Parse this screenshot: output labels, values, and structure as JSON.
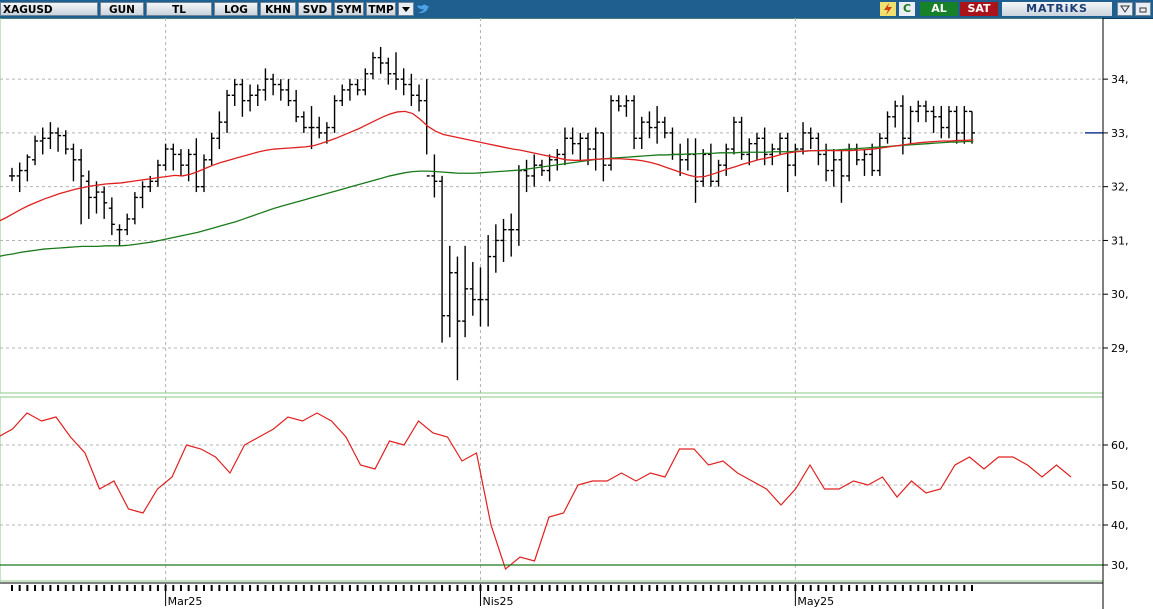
{
  "toolbar": {
    "symbol": "XAGUSD",
    "buttons": [
      "GUN",
      "TL",
      "LOG",
      "KHN",
      "SVD",
      "SYM",
      "TMP"
    ],
    "buy_label": "AL",
    "sell_label": "SAT",
    "brand": "MATRiKS",
    "icons": [
      "dropdown-arrow-icon",
      "twitter-bird-icon",
      "lightning-icon",
      "refresh-c-icon",
      "collapse-icon",
      "minimize-icon"
    ]
  },
  "colors": {
    "toolbar_bg": "#1f5f8f",
    "price_bars": "#000000",
    "ma_short": "#e02020",
    "ma_long": "#1a7a1a",
    "rsi_line": "#e02020",
    "rsi_threshold": "#1a7a1a",
    "panel_border": "#88c888",
    "grid": "#b4b4b4"
  },
  "chart_data": [
    {
      "type": "ohlc",
      "yticks": [
        29,
        30,
        31,
        32,
        33,
        34
      ],
      "ylim": [
        28.2,
        35.1
      ],
      "x_labels": [
        {
          "label": "Mar25",
          "index": 20
        },
        {
          "label": "Nis25",
          "index": 61
        },
        {
          "label": "May25",
          "index": 102
        }
      ],
      "bars": [
        [
          32.2,
          32.35,
          32.1,
          32.2
        ],
        [
          32.2,
          32.45,
          31.9,
          32.3
        ],
        [
          32.3,
          32.6,
          32.1,
          32.55
        ],
        [
          32.5,
          32.95,
          32.4,
          32.85
        ],
        [
          32.85,
          33.1,
          32.6,
          32.9
        ],
        [
          32.9,
          33.2,
          32.7,
          33.0
        ],
        [
          33.0,
          33.1,
          32.65,
          32.95
        ],
        [
          32.95,
          33.05,
          32.6,
          32.7
        ],
        [
          32.7,
          32.8,
          32.1,
          32.5
        ],
        [
          32.5,
          32.7,
          31.3,
          32.2
        ],
        [
          32.1,
          32.3,
          31.4,
          31.8
        ],
        [
          31.8,
          32.1,
          31.5,
          31.9
        ],
        [
          31.9,
          32.0,
          31.4,
          31.7
        ],
        [
          31.6,
          31.8,
          31.1,
          31.3
        ],
        [
          31.2,
          31.3,
          30.9,
          31.2
        ],
        [
          31.2,
          31.5,
          31.1,
          31.4
        ],
        [
          31.4,
          31.9,
          31.3,
          31.8
        ],
        [
          31.8,
          32.1,
          31.6,
          32.0
        ],
        [
          32.0,
          32.2,
          31.9,
          32.1
        ],
        [
          32.1,
          32.5,
          32.0,
          32.4
        ],
        [
          32.4,
          32.8,
          32.3,
          32.7
        ],
        [
          32.7,
          32.8,
          32.3,
          32.6
        ],
        [
          32.6,
          32.7,
          32.2,
          32.4
        ],
        [
          32.4,
          32.7,
          32.1,
          32.6
        ],
        [
          32.6,
          32.9,
          31.9,
          32.0
        ],
        [
          32.0,
          32.6,
          31.9,
          32.5
        ],
        [
          32.5,
          33.0,
          32.4,
          32.9
        ],
        [
          32.9,
          33.4,
          32.7,
          33.2
        ],
        [
          33.2,
          33.8,
          33.0,
          33.7
        ],
        [
          33.7,
          34.0,
          33.5,
          33.9
        ],
        [
          33.9,
          34.0,
          33.3,
          33.6
        ],
        [
          33.6,
          33.9,
          33.4,
          33.7
        ],
        [
          33.7,
          33.9,
          33.5,
          33.8
        ],
        [
          33.8,
          34.2,
          33.6,
          34.0
        ],
        [
          34.0,
          34.1,
          33.7,
          33.9
        ],
        [
          33.9,
          34.0,
          33.6,
          33.8
        ],
        [
          33.8,
          34.0,
          33.5,
          33.6
        ],
        [
          33.6,
          33.8,
          33.2,
          33.3
        ],
        [
          33.3,
          33.4,
          33.0,
          33.1
        ],
        [
          33.1,
          33.5,
          32.7,
          33.1
        ],
        [
          33.1,
          33.3,
          32.9,
          33.0
        ],
        [
          33.0,
          33.2,
          32.8,
          33.1
        ],
        [
          33.1,
          33.7,
          33.0,
          33.6
        ],
        [
          33.6,
          33.9,
          33.5,
          33.8
        ],
        [
          33.8,
          34.0,
          33.6,
          33.9
        ],
        [
          33.9,
          34.0,
          33.7,
          33.8
        ],
        [
          33.8,
          34.2,
          33.7,
          34.1
        ],
        [
          34.1,
          34.5,
          34.0,
          34.4
        ],
        [
          34.4,
          34.6,
          34.1,
          34.3
        ],
        [
          34.3,
          34.4,
          33.9,
          34.1
        ],
        [
          34.1,
          34.5,
          33.8,
          34.0
        ],
        [
          34.0,
          34.2,
          33.7,
          33.9
        ],
        [
          33.9,
          34.1,
          33.5,
          33.7
        ],
        [
          33.7,
          33.9,
          33.4,
          33.6
        ],
        [
          33.6,
          34.0,
          32.6,
          32.2
        ],
        [
          32.2,
          32.6,
          31.8,
          32.1
        ],
        [
          32.1,
          32.2,
          29.1,
          29.6
        ],
        [
          29.6,
          30.9,
          29.2,
          30.4
        ],
        [
          30.4,
          30.7,
          28.4,
          29.5
        ],
        [
          29.5,
          30.9,
          29.2,
          30.1
        ],
        [
          30.1,
          30.6,
          29.6,
          29.9
        ],
        [
          29.9,
          30.5,
          29.4,
          29.9
        ],
        [
          29.9,
          31.1,
          29.4,
          30.7
        ],
        [
          30.7,
          31.3,
          30.4,
          31.0
        ],
        [
          31.0,
          31.4,
          30.6,
          31.2
        ],
        [
          31.2,
          31.5,
          30.7,
          31.2
        ],
        [
          31.2,
          32.4,
          30.9,
          32.3
        ],
        [
          32.3,
          32.5,
          31.9,
          32.2
        ],
        [
          32.2,
          32.6,
          32.0,
          32.4
        ],
        [
          32.4,
          32.5,
          32.2,
          32.3
        ],
        [
          32.3,
          32.6,
          32.1,
          32.5
        ],
        [
          32.5,
          32.7,
          32.3,
          32.6
        ],
        [
          32.6,
          33.1,
          32.4,
          32.9
        ],
        [
          32.9,
          33.1,
          32.6,
          32.8
        ],
        [
          32.8,
          33.0,
          32.5,
          32.9
        ],
        [
          32.9,
          33.0,
          32.4,
          32.7
        ],
        [
          32.7,
          33.1,
          32.3,
          33.0
        ],
        [
          33.0,
          33.0,
          32.1,
          32.4
        ],
        [
          32.4,
          33.7,
          32.3,
          33.6
        ],
        [
          33.6,
          33.7,
          33.4,
          33.5
        ],
        [
          33.5,
          33.7,
          33.3,
          33.6
        ],
        [
          33.6,
          33.7,
          32.7,
          32.9
        ],
        [
          32.9,
          33.3,
          32.7,
          33.2
        ],
        [
          33.2,
          33.4,
          32.9,
          33.1
        ],
        [
          33.1,
          33.5,
          32.8,
          33.2
        ],
        [
          33.2,
          33.3,
          32.9,
          33.0
        ],
        [
          33.0,
          33.1,
          32.5,
          32.6
        ],
        [
          32.6,
          32.8,
          32.2,
          32.5
        ],
        [
          32.5,
          32.9,
          32.3,
          32.6
        ],
        [
          32.6,
          32.9,
          31.7,
          32.1
        ],
        [
          32.1,
          32.7,
          32.0,
          32.6
        ],
        [
          32.6,
          32.8,
          32.0,
          32.1
        ],
        [
          32.1,
          32.5,
          32.0,
          32.4
        ],
        [
          32.4,
          32.8,
          32.2,
          32.7
        ],
        [
          32.7,
          33.3,
          32.6,
          33.2
        ],
        [
          33.2,
          33.3,
          32.5,
          32.6
        ],
        [
          32.6,
          32.9,
          32.4,
          32.8
        ],
        [
          32.8,
          33.0,
          32.5,
          32.9
        ],
        [
          32.9,
          33.1,
          32.4,
          32.6
        ],
        [
          32.6,
          32.8,
          32.4,
          32.7
        ],
        [
          32.7,
          33.0,
          32.6,
          32.9
        ],
        [
          32.9,
          33.0,
          31.9,
          32.4
        ],
        [
          32.4,
          32.8,
          32.2,
          32.7
        ],
        [
          32.7,
          33.2,
          32.6,
          33.0
        ],
        [
          33.0,
          33.1,
          32.7,
          32.9
        ],
        [
          32.9,
          33.0,
          32.4,
          32.6
        ],
        [
          32.6,
          32.8,
          32.1,
          32.3
        ],
        [
          32.3,
          32.7,
          32.0,
          32.5
        ],
        [
          32.5,
          32.7,
          31.7,
          32.2
        ],
        [
          32.2,
          32.8,
          32.1,
          32.7
        ],
        [
          32.7,
          32.8,
          32.4,
          32.5
        ],
        [
          32.5,
          32.7,
          32.2,
          32.6
        ],
        [
          32.6,
          32.8,
          32.2,
          32.3
        ],
        [
          32.3,
          33.0,
          32.2,
          32.9
        ],
        [
          32.9,
          33.4,
          32.8,
          33.3
        ],
        [
          33.3,
          33.6,
          33.1,
          33.5
        ],
        [
          33.5,
          33.7,
          32.6,
          32.9
        ],
        [
          32.9,
          33.5,
          32.8,
          33.4
        ],
        [
          33.4,
          33.6,
          33.2,
          33.5
        ],
        [
          33.5,
          33.6,
          33.2,
          33.4
        ],
        [
          33.4,
          33.5,
          33.0,
          33.3
        ],
        [
          33.3,
          33.5,
          32.9,
          33.1
        ],
        [
          33.1,
          33.5,
          32.9,
          33.4
        ],
        [
          33.4,
          33.5,
          32.8,
          33.0
        ],
        [
          33.0,
          33.5,
          32.8,
          33.4
        ],
        [
          33.4,
          33.4,
          32.8,
          33.0
        ]
      ],
      "ma_short": [
        31.35,
        31.42,
        31.5,
        31.58,
        31.65,
        31.71,
        31.77,
        31.82,
        31.87,
        31.91,
        31.95,
        31.98,
        32.01,
        32.03,
        32.05,
        32.06,
        32.07,
        32.09,
        32.11,
        32.13,
        32.15,
        32.17,
        32.19,
        32.21,
        32.2,
        32.23,
        32.28,
        32.34,
        32.4,
        32.45,
        32.49,
        32.53,
        32.57,
        32.61,
        32.65,
        32.68,
        32.7,
        32.71,
        32.72,
        32.73,
        32.74,
        32.76,
        32.8,
        32.85,
        32.9,
        32.96,
        33.02,
        33.08,
        33.15,
        33.22,
        33.29,
        33.35,
        33.39,
        33.4,
        33.36,
        33.25,
        33.12,
        33.03,
        32.97,
        32.94,
        32.91,
        32.88,
        32.85,
        32.82,
        32.79,
        32.76,
        32.73,
        32.7,
        32.68,
        32.65,
        32.62,
        32.59,
        32.56,
        32.53,
        32.5,
        32.49,
        32.49,
        32.5,
        32.51,
        32.52,
        32.52,
        32.52,
        32.51,
        32.5,
        32.48,
        32.45,
        32.41,
        32.36,
        32.31,
        32.26,
        32.21,
        32.18,
        32.19,
        32.23,
        32.28,
        32.33,
        32.37,
        32.42,
        32.46,
        32.5,
        32.53,
        32.56,
        32.6,
        32.63,
        32.65,
        32.66,
        32.67,
        32.67,
        32.67,
        32.67,
        32.67,
        32.67,
        32.68,
        32.69,
        32.7,
        32.72,
        32.74,
        32.76,
        32.78,
        32.8,
        32.82,
        32.83,
        32.84,
        32.85,
        32.85,
        32.86,
        32.86,
        32.87
      ],
      "ma_long": [
        30.7,
        30.73,
        30.75,
        30.78,
        30.8,
        30.82,
        30.84,
        30.85,
        30.86,
        30.87,
        30.88,
        30.89,
        30.89,
        30.89,
        30.9,
        30.9,
        30.9,
        30.91,
        30.93,
        30.95,
        30.97,
        31.0,
        31.03,
        31.06,
        31.09,
        31.12,
        31.15,
        31.19,
        31.23,
        31.27,
        31.31,
        31.35,
        31.4,
        31.45,
        31.5,
        31.55,
        31.6,
        31.64,
        31.68,
        31.72,
        31.76,
        31.8,
        31.84,
        31.88,
        31.92,
        31.96,
        32.0,
        32.04,
        32.08,
        32.12,
        32.16,
        32.2,
        32.23,
        32.26,
        32.28,
        32.29,
        32.29,
        32.28,
        32.27,
        32.26,
        32.25,
        32.25,
        32.25,
        32.26,
        32.27,
        32.28,
        32.29,
        32.3,
        32.31,
        32.33,
        32.35,
        32.37,
        32.39,
        32.41,
        32.43,
        32.45,
        32.47,
        32.49,
        32.51,
        32.52,
        32.53,
        32.54,
        32.55,
        32.56,
        32.57,
        32.58,
        32.59,
        32.59,
        32.6,
        32.6,
        32.61,
        32.61,
        32.62,
        32.62,
        32.63,
        32.63,
        32.63,
        32.64,
        32.64,
        32.64,
        32.64,
        32.65,
        32.65,
        32.65,
        32.66,
        32.66,
        32.67,
        32.67,
        32.68,
        32.68,
        32.69,
        32.7,
        32.71,
        32.72,
        32.73,
        32.74,
        32.75,
        32.76,
        32.77,
        32.78,
        32.79,
        32.8,
        32.81,
        32.82,
        32.83,
        32.83,
        32.84,
        32.84
      ]
    },
    {
      "type": "line",
      "yticks": [
        30,
        40,
        50,
        60
      ],
      "ylim": [
        26.5,
        71.5
      ],
      "threshold": 30,
      "rsi": [
        62,
        64,
        68,
        66,
        67,
        62,
        58,
        49,
        51,
        44,
        43,
        49,
        52,
        60,
        59,
        57,
        53,
        60,
        62,
        64,
        67,
        66,
        68,
        66,
        62,
        55,
        54,
        61,
        60,
        66,
        63,
        62,
        56,
        58,
        40,
        29,
        32,
        31,
        42,
        43,
        50,
        51,
        51,
        53,
        51,
        53,
        52,
        59,
        59,
        55,
        56,
        53,
        51,
        49,
        45,
        49,
        55,
        49,
        49,
        51,
        50,
        52,
        47,
        51,
        48,
        49,
        55,
        57,
        54,
        57,
        57,
        55,
        52,
        55,
        52
      ]
    }
  ]
}
